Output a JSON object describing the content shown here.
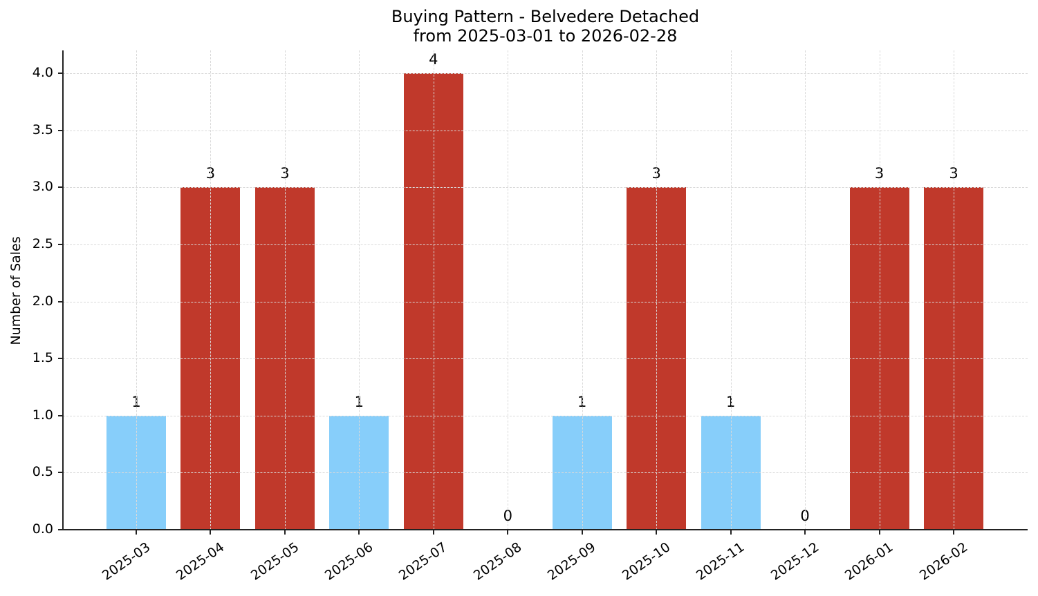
{
  "chart_data": {
    "type": "bar",
    "title": "Buying Pattern - Belvedere Detached\nfrom 2025-03-01 to 2026-02-28",
    "title_lines": [
      "Buying Pattern - Belvedere Detached",
      "from 2025-03-01 to 2026-02-28"
    ],
    "xlabel": "",
    "ylabel": "Number of Sales",
    "categories": [
      "2025-03",
      "2025-04",
      "2025-05",
      "2025-06",
      "2025-07",
      "2025-08",
      "2025-09",
      "2025-10",
      "2025-11",
      "2025-12",
      "2026-01",
      "2026-02"
    ],
    "values": [
      1,
      3,
      3,
      1,
      4,
      0,
      1,
      3,
      1,
      0,
      3,
      3
    ],
    "bar_colors": [
      "#87cefa",
      "#c0392b",
      "#c0392b",
      "#87cefa",
      "#c0392b",
      "#c0392b",
      "#87cefa",
      "#c0392b",
      "#87cefa",
      "#c0392b",
      "#c0392b",
      "#c0392b"
    ],
    "colors": {
      "high": "#c0392b",
      "low": "#87cefa"
    },
    "ylim": [
      0,
      4.2
    ],
    "yticks": [
      "0.0",
      "0.5",
      "1.0",
      "1.5",
      "2.0",
      "2.5",
      "3.0",
      "3.5",
      "4.0"
    ],
    "ytick_values": [
      0,
      0.5,
      1.0,
      1.5,
      2.0,
      2.5,
      3.0,
      3.5,
      4.0
    ],
    "grid": true,
    "legend": null,
    "data_labels": true
  }
}
